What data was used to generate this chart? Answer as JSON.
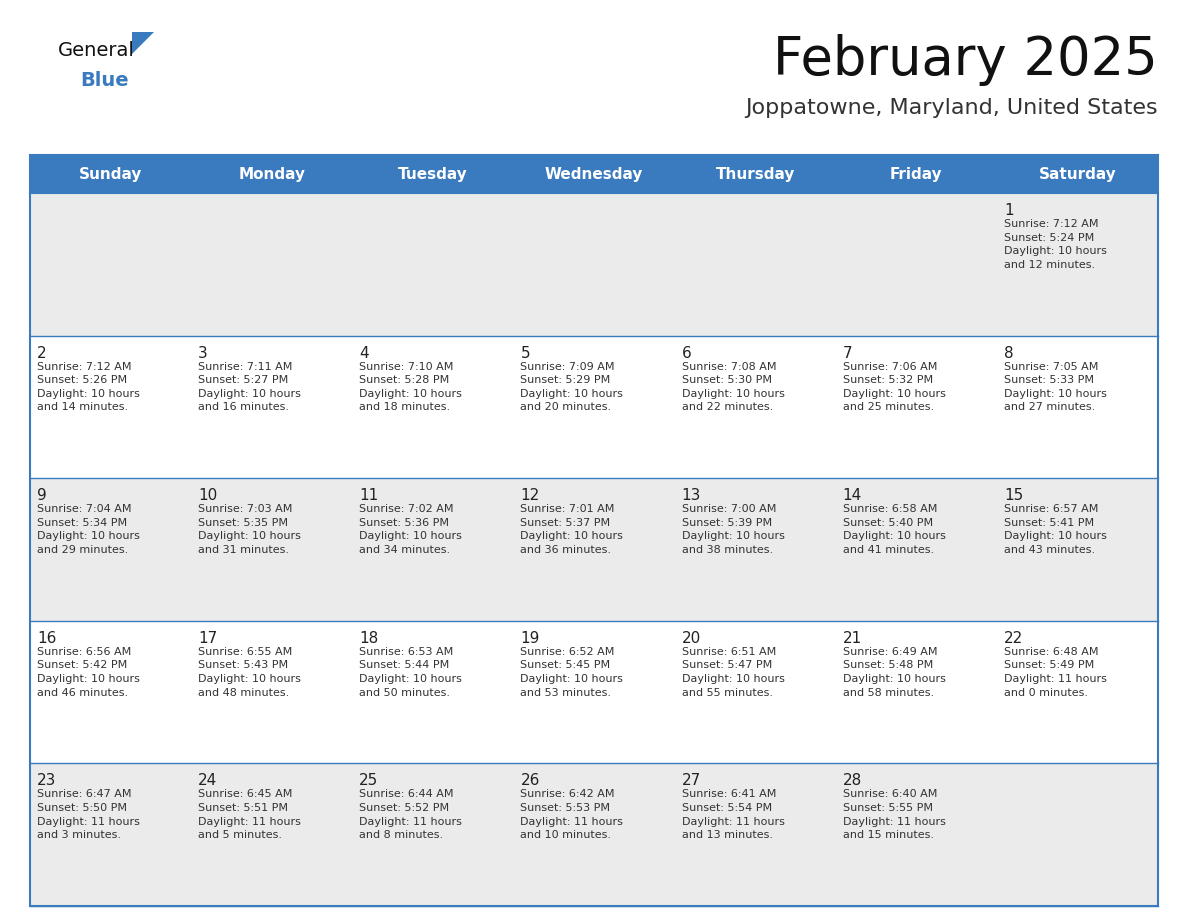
{
  "title": "February 2025",
  "subtitle": "Joppatowne, Maryland, United States",
  "header_color": "#3a7abf",
  "header_text_color": "#ffffff",
  "day_names": [
    "Sunday",
    "Monday",
    "Tuesday",
    "Wednesday",
    "Thursday",
    "Friday",
    "Saturday"
  ],
  "background_color": "#ffffff",
  "cell_bg_row0": "#ebebeb",
  "cell_bg_row1": "#ffffff",
  "cell_bg_row2": "#ebebeb",
  "cell_bg_row3": "#ffffff",
  "cell_bg_row4": "#ebebeb",
  "border_color": "#3a7abf",
  "line_color": "#3a7abf",
  "text_color": "#333333",
  "day_num_color": "#222222",
  "title_color": "#111111",
  "subtitle_color": "#333333",
  "logo_general_color": "#111111",
  "logo_blue_color": "#3a7abf",
  "logo_triangle_color": "#3a7abf",
  "weeks": [
    [
      {
        "day": null,
        "sunrise": null,
        "sunset": null,
        "daylight": null
      },
      {
        "day": null,
        "sunrise": null,
        "sunset": null,
        "daylight": null
      },
      {
        "day": null,
        "sunrise": null,
        "sunset": null,
        "daylight": null
      },
      {
        "day": null,
        "sunrise": null,
        "sunset": null,
        "daylight": null
      },
      {
        "day": null,
        "sunrise": null,
        "sunset": null,
        "daylight": null
      },
      {
        "day": null,
        "sunrise": null,
        "sunset": null,
        "daylight": null
      },
      {
        "day": 1,
        "sunrise": "7:12 AM",
        "sunset": "5:24 PM",
        "daylight": "10 hours\nand 12 minutes."
      }
    ],
    [
      {
        "day": 2,
        "sunrise": "7:12 AM",
        "sunset": "5:26 PM",
        "daylight": "10 hours\nand 14 minutes."
      },
      {
        "day": 3,
        "sunrise": "7:11 AM",
        "sunset": "5:27 PM",
        "daylight": "10 hours\nand 16 minutes."
      },
      {
        "day": 4,
        "sunrise": "7:10 AM",
        "sunset": "5:28 PM",
        "daylight": "10 hours\nand 18 minutes."
      },
      {
        "day": 5,
        "sunrise": "7:09 AM",
        "sunset": "5:29 PM",
        "daylight": "10 hours\nand 20 minutes."
      },
      {
        "day": 6,
        "sunrise": "7:08 AM",
        "sunset": "5:30 PM",
        "daylight": "10 hours\nand 22 minutes."
      },
      {
        "day": 7,
        "sunrise": "7:06 AM",
        "sunset": "5:32 PM",
        "daylight": "10 hours\nand 25 minutes."
      },
      {
        "day": 8,
        "sunrise": "7:05 AM",
        "sunset": "5:33 PM",
        "daylight": "10 hours\nand 27 minutes."
      }
    ],
    [
      {
        "day": 9,
        "sunrise": "7:04 AM",
        "sunset": "5:34 PM",
        "daylight": "10 hours\nand 29 minutes."
      },
      {
        "day": 10,
        "sunrise": "7:03 AM",
        "sunset": "5:35 PM",
        "daylight": "10 hours\nand 31 minutes."
      },
      {
        "day": 11,
        "sunrise": "7:02 AM",
        "sunset": "5:36 PM",
        "daylight": "10 hours\nand 34 minutes."
      },
      {
        "day": 12,
        "sunrise": "7:01 AM",
        "sunset": "5:37 PM",
        "daylight": "10 hours\nand 36 minutes."
      },
      {
        "day": 13,
        "sunrise": "7:00 AM",
        "sunset": "5:39 PM",
        "daylight": "10 hours\nand 38 minutes."
      },
      {
        "day": 14,
        "sunrise": "6:58 AM",
        "sunset": "5:40 PM",
        "daylight": "10 hours\nand 41 minutes."
      },
      {
        "day": 15,
        "sunrise": "6:57 AM",
        "sunset": "5:41 PM",
        "daylight": "10 hours\nand 43 minutes."
      }
    ],
    [
      {
        "day": 16,
        "sunrise": "6:56 AM",
        "sunset": "5:42 PM",
        "daylight": "10 hours\nand 46 minutes."
      },
      {
        "day": 17,
        "sunrise": "6:55 AM",
        "sunset": "5:43 PM",
        "daylight": "10 hours\nand 48 minutes."
      },
      {
        "day": 18,
        "sunrise": "6:53 AM",
        "sunset": "5:44 PM",
        "daylight": "10 hours\nand 50 minutes."
      },
      {
        "day": 19,
        "sunrise": "6:52 AM",
        "sunset": "5:45 PM",
        "daylight": "10 hours\nand 53 minutes."
      },
      {
        "day": 20,
        "sunrise": "6:51 AM",
        "sunset": "5:47 PM",
        "daylight": "10 hours\nand 55 minutes."
      },
      {
        "day": 21,
        "sunrise": "6:49 AM",
        "sunset": "5:48 PM",
        "daylight": "10 hours\nand 58 minutes."
      },
      {
        "day": 22,
        "sunrise": "6:48 AM",
        "sunset": "5:49 PM",
        "daylight": "11 hours\nand 0 minutes."
      }
    ],
    [
      {
        "day": 23,
        "sunrise": "6:47 AM",
        "sunset": "5:50 PM",
        "daylight": "11 hours\nand 3 minutes."
      },
      {
        "day": 24,
        "sunrise": "6:45 AM",
        "sunset": "5:51 PM",
        "daylight": "11 hours\nand 5 minutes."
      },
      {
        "day": 25,
        "sunrise": "6:44 AM",
        "sunset": "5:52 PM",
        "daylight": "11 hours\nand 8 minutes."
      },
      {
        "day": 26,
        "sunrise": "6:42 AM",
        "sunset": "5:53 PM",
        "daylight": "11 hours\nand 10 minutes."
      },
      {
        "day": 27,
        "sunrise": "6:41 AM",
        "sunset": "5:54 PM",
        "daylight": "11 hours\nand 13 minutes."
      },
      {
        "day": 28,
        "sunrise": "6:40 AM",
        "sunset": "5:55 PM",
        "daylight": "11 hours\nand 15 minutes."
      },
      {
        "day": null,
        "sunrise": null,
        "sunset": null,
        "daylight": null
      }
    ]
  ]
}
